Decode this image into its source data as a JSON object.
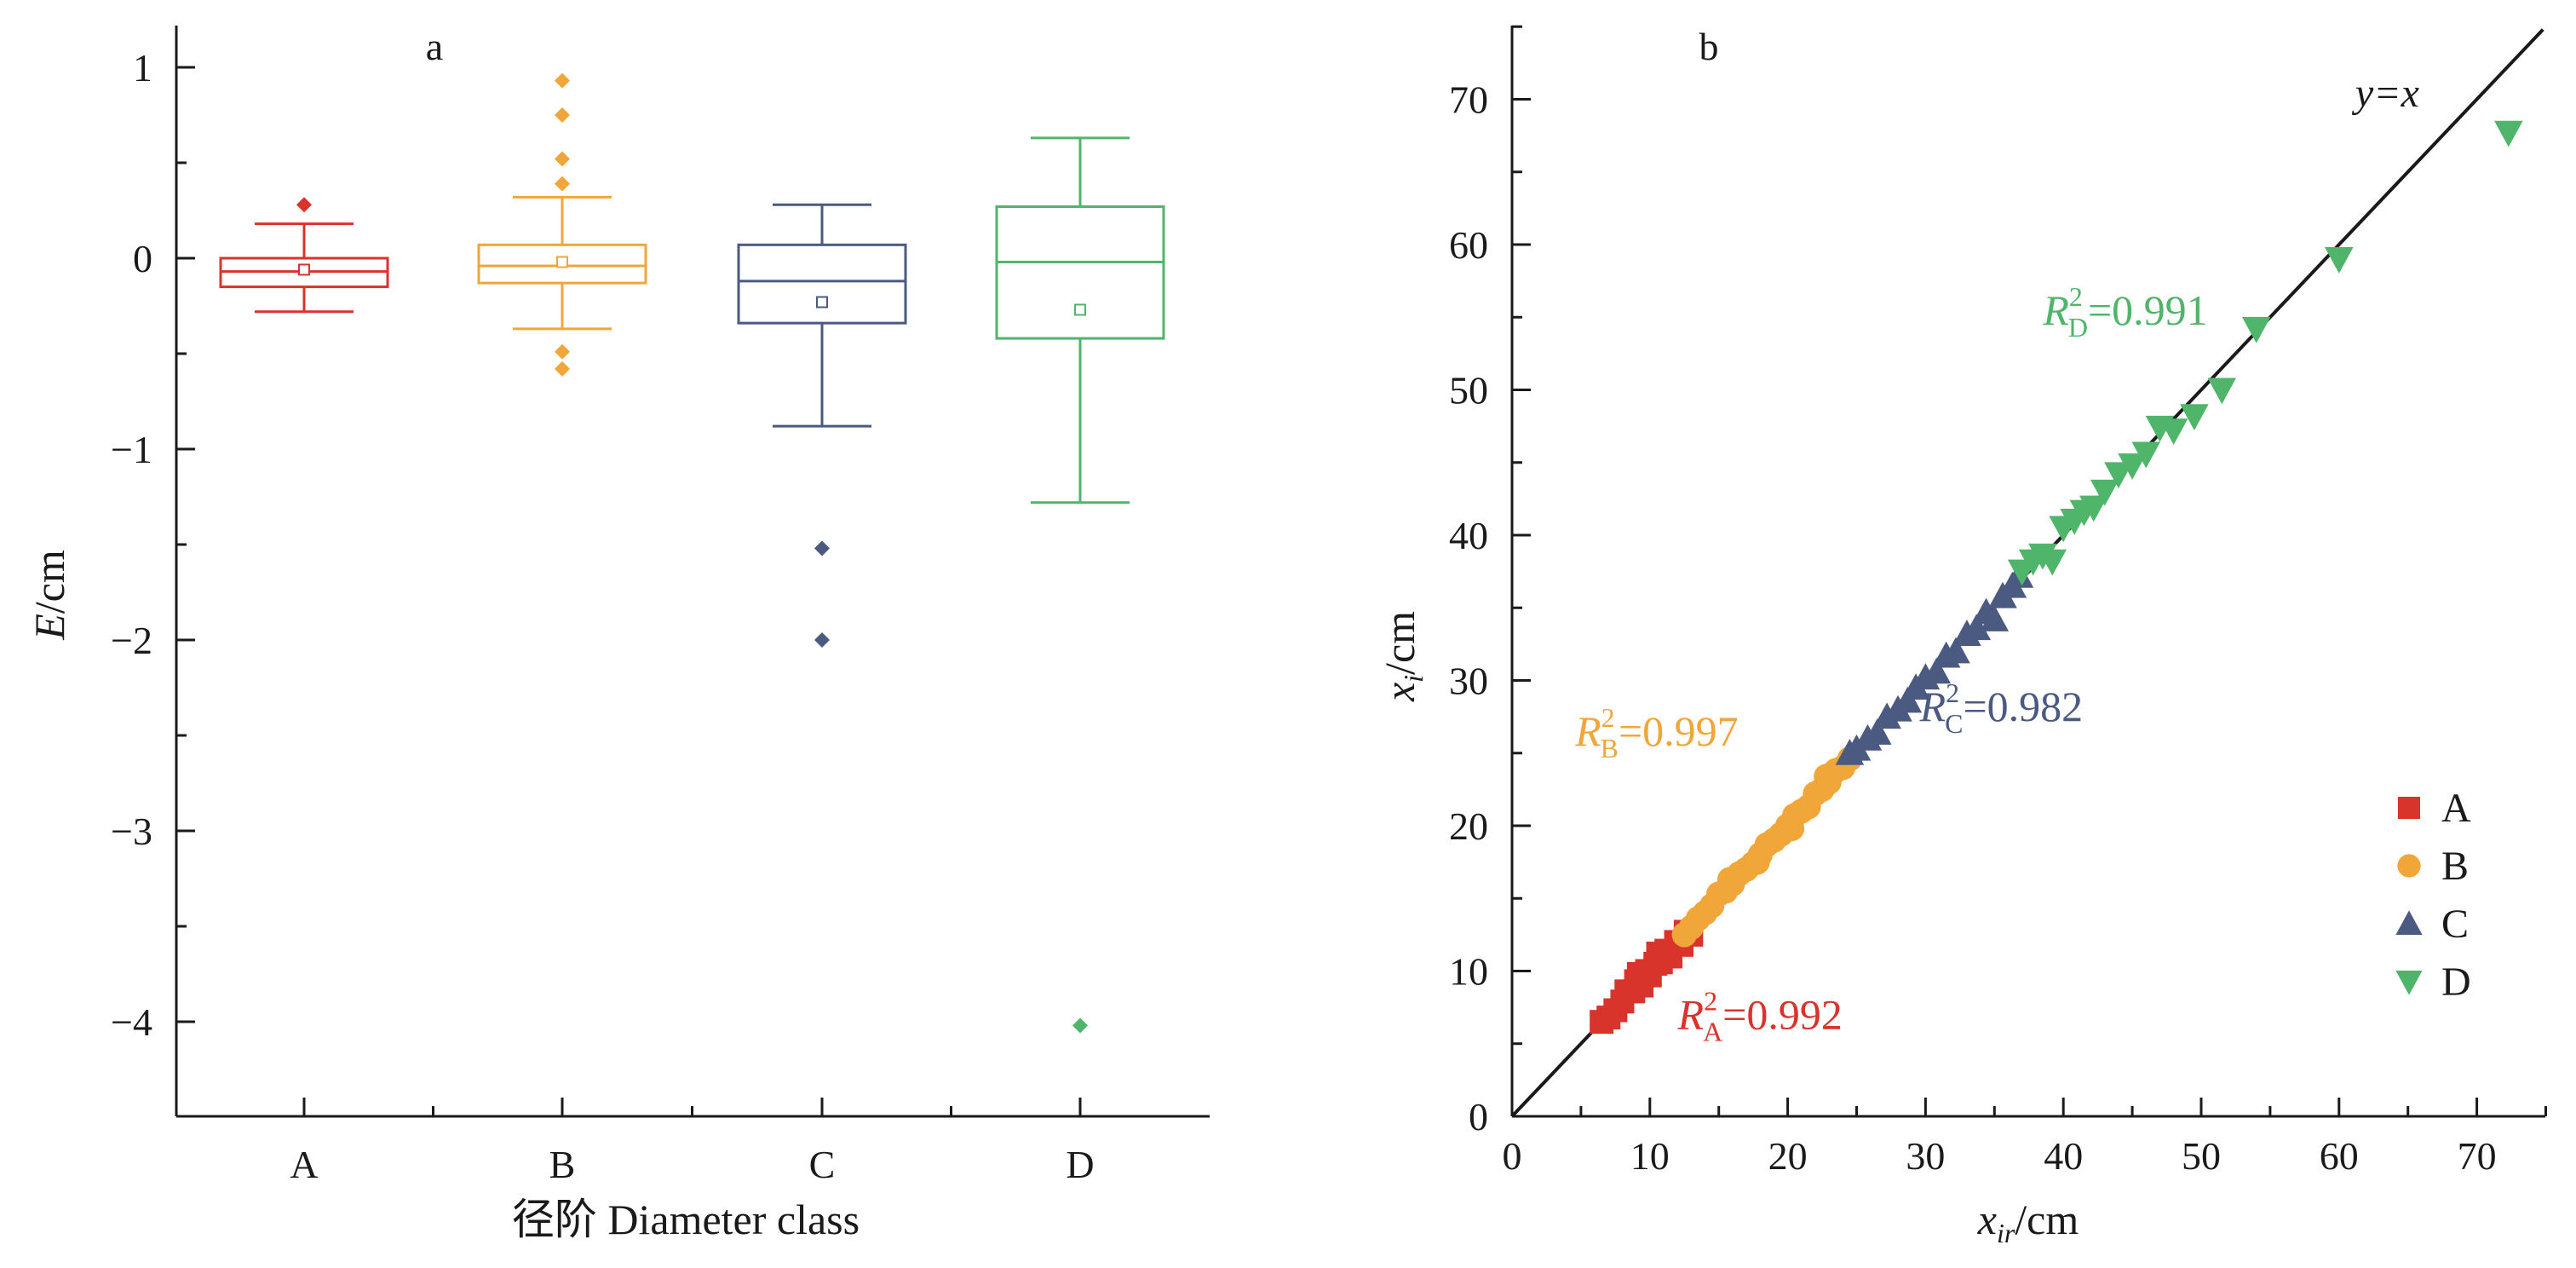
{
  "chart_data": [
    {
      "panel": "a",
      "type": "box",
      "xlabel": "径阶  Diameter class",
      "ylabel": "E/cm",
      "ylim": [
        -4.5,
        1.2
      ],
      "yticks": [
        -4,
        -3,
        -2,
        -1,
        0,
        1
      ],
      "ytick_labels": [
        "−4",
        "−3",
        "−2",
        "−1",
        "0",
        "1"
      ],
      "categories": [
        "A",
        "B",
        "C",
        "D"
      ],
      "boxes": [
        {
          "name": "A",
          "color": "#d9342b",
          "min": -0.28,
          "q1": -0.15,
          "median": -0.07,
          "q3": 0.0,
          "max": 0.18,
          "mean": -0.06,
          "outliers": [
            0.28
          ]
        },
        {
          "name": "B",
          "color": "#f0a638",
          "min": -0.37,
          "q1": -0.13,
          "median": -0.04,
          "q3": 0.07,
          "max": 0.32,
          "mean": -0.02,
          "outliers": [
            0.93,
            0.75,
            0.52,
            0.39,
            -0.49,
            -0.58
          ]
        },
        {
          "name": "C",
          "color": "#4a5a80",
          "min": -0.88,
          "q1": -0.34,
          "median": -0.12,
          "q3": 0.07,
          "max": 0.28,
          "mean": -0.23,
          "outliers": [
            -1.52,
            -2.0
          ]
        },
        {
          "name": "D",
          "color": "#4fb56a",
          "min": -1.28,
          "q1": -0.42,
          "median": -0.02,
          "q3": 0.27,
          "max": 0.63,
          "mean": -0.27,
          "outliers": [
            -4.02
          ]
        }
      ]
    },
    {
      "panel": "b",
      "type": "scatter",
      "xlabel_main": "x",
      "xlabel_sub": "ir",
      "xlabel_unit": "/cm",
      "ylabel_main": "x",
      "ylabel_sub": "i",
      "ylabel_unit": "/cm",
      "xlim": [
        0,
        75
      ],
      "ylim": [
        0,
        75
      ],
      "xticks": [
        0,
        10,
        20,
        30,
        40,
        50,
        60,
        70
      ],
      "yticks": [
        0,
        10,
        20,
        30,
        40,
        50,
        60,
        70
      ],
      "line_label": "y=x",
      "legend_position": "bottom-right",
      "series": [
        {
          "name": "A",
          "color": "#d9342b",
          "marker": "square",
          "r2_label": "R",
          "r2_sub": "A",
          "r2_value": "=0.992",
          "points": [
            [
              6.5,
              6.5
            ],
            [
              7,
              6.8
            ],
            [
              7.5,
              7.3
            ],
            [
              8,
              7.9
            ],
            [
              8.3,
              8.6
            ],
            [
              8.8,
              8.6
            ],
            [
              9,
              9.3
            ],
            [
              9.4,
              9
            ],
            [
              9.8,
              10
            ],
            [
              10,
              9.7
            ],
            [
              10.4,
              10.5
            ],
            [
              10.8,
              10.6
            ],
            [
              11.2,
              11.4
            ],
            [
              11.5,
              11
            ],
            [
              11.9,
              12
            ],
            [
              12.3,
              11.8
            ],
            [
              12.6,
              12.7
            ],
            [
              13,
              12.5
            ],
            [
              10.6,
              11.2
            ],
            [
              9.2,
              9.8
            ]
          ]
        },
        {
          "name": "B",
          "color": "#f0a638",
          "marker": "circle",
          "r2_label": "R",
          "r2_sub": "B",
          "r2_value": "=0.997",
          "points": [
            [
              12.5,
              12.5
            ],
            [
              13,
              13
            ],
            [
              13.5,
              13.6
            ],
            [
              14,
              14
            ],
            [
              14.5,
              14.5
            ],
            [
              15,
              15.3
            ],
            [
              15.5,
              15.5
            ],
            [
              16,
              16
            ],
            [
              16.5,
              16.7
            ],
            [
              17,
              17
            ],
            [
              17.5,
              17.4
            ],
            [
              18,
              18
            ],
            [
              18.5,
              18.7
            ],
            [
              19,
              19
            ],
            [
              19.5,
              19.4
            ],
            [
              20,
              20
            ],
            [
              20.5,
              20.7
            ],
            [
              21,
              21
            ],
            [
              21.5,
              21.3
            ],
            [
              22,
              22.2
            ],
            [
              22.5,
              22.5
            ],
            [
              23,
              23
            ],
            [
              23.5,
              23.8
            ],
            [
              24,
              24
            ],
            [
              24.5,
              24.6
            ],
            [
              15.8,
              16.3
            ],
            [
              17.8,
              17.5
            ],
            [
              20.3,
              19.8
            ],
            [
              22.8,
              23.4
            ]
          ]
        },
        {
          "name": "C",
          "color": "#4a5a80",
          "marker": "triangle-up",
          "r2_label": "R",
          "r2_sub": "C",
          "r2_value": "=0.982",
          "points": [
            [
              24.5,
              25
            ],
            [
              25,
              25.3
            ],
            [
              25.8,
              26
            ],
            [
              26.5,
              26.4
            ],
            [
              27.2,
              27.5
            ],
            [
              28,
              28
            ],
            [
              28.7,
              28.6
            ],
            [
              29.3,
              29.5
            ],
            [
              30,
              30.2
            ],
            [
              30.8,
              30.6
            ],
            [
              31.5,
              31.7
            ],
            [
              32.2,
              32
            ],
            [
              33,
              33.2
            ],
            [
              33.7,
              33.6
            ],
            [
              34.4,
              34.7
            ],
            [
              35,
              34.2
            ],
            [
              35.6,
              35.8
            ],
            [
              36.3,
              36.5
            ],
            [
              36.8,
              37.2
            ]
          ]
        },
        {
          "name": "D",
          "color": "#4fb56a",
          "marker": "triangle-down",
          "r2_label": "R",
          "r2_sub": "D",
          "r2_value": "=0.991",
          "points": [
            [
              37,
              37.5
            ],
            [
              37.8,
              38.2
            ],
            [
              38.5,
              38.6
            ],
            [
              39.2,
              38.2
            ],
            [
              40,
              40.5
            ],
            [
              40.8,
              41
            ],
            [
              41.5,
              41.6
            ],
            [
              42.2,
              41.9
            ],
            [
              43,
              43
            ],
            [
              44,
              44.2
            ],
            [
              45,
              44.8
            ],
            [
              46,
              45.6
            ],
            [
              47,
              47.4
            ],
            [
              48,
              47.2
            ],
            [
              49.5,
              48.2
            ],
            [
              51.5,
              50
            ],
            [
              54,
              54.2
            ],
            [
              60,
              59
            ],
            [
              72.3,
              67.7
            ]
          ]
        }
      ]
    }
  ],
  "panels": {
    "a": {
      "label": "a",
      "xlabel": "径阶  Diameter class",
      "ylabel_main": "E",
      "ylabel_unit": "/cm"
    },
    "b": {
      "label": "b"
    }
  }
}
